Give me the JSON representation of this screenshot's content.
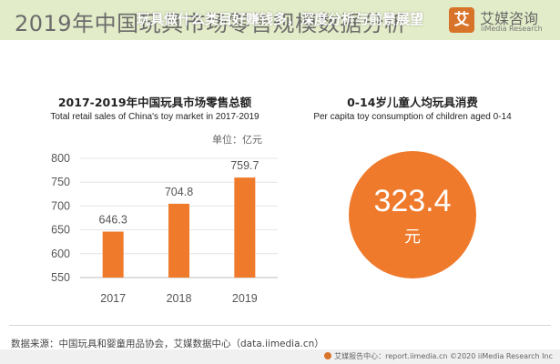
{
  "header": {
    "title": "2019年中国玩具市场零售规模数据分析",
    "overlay_title": "玩具做什么类目好赚钱多，深度分析与前景展望"
  },
  "brand": {
    "mark": "艾",
    "name": "艾媒咨询",
    "sub": "iiMedia Research"
  },
  "colors": {
    "bar": "#ef7a2b",
    "circle": "#ef7a2b",
    "header_band": "#e2ecc8"
  },
  "chart_data": [
    {
      "type": "bar",
      "title": "2017-2019年中国玩具市场零售总额",
      "subtitle": "Total retail sales of China's toy market in 2017-2019",
      "unit": "单位：亿元",
      "categories": [
        "2017",
        "2018",
        "2019"
      ],
      "values": [
        646.3,
        704.8,
        759.7
      ],
      "value_labels": [
        "646.3",
        "704.8",
        "759.7"
      ],
      "yticks": [
        "800",
        "750",
        "700",
        "650",
        "600",
        "550"
      ],
      "ylim": [
        550,
        800
      ],
      "xlabel": "",
      "ylabel": "",
      "grid": true
    },
    {
      "type": "table",
      "title": "0-14岁儿童人均玩具消费",
      "subtitle": "Per capita toy consumption of children aged 0-14",
      "value": 323.4,
      "value_label": "323.4",
      "unit": "元"
    }
  ],
  "footer": {
    "source": "数据来源：中国玩具和婴童用品协会，艾媒数据中心（data.iimedia.cn）",
    "report": "艾媒报告中心：report.iimedia.cn ©2020  iiMedia Research  Inc"
  }
}
